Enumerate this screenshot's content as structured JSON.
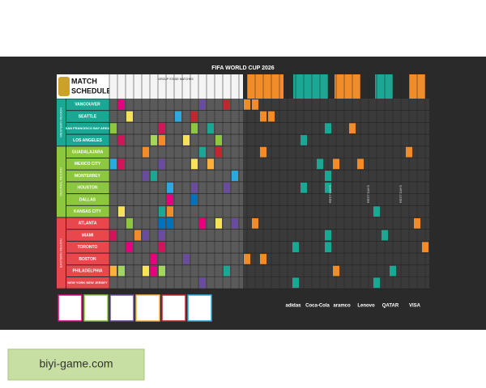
{
  "header": {
    "event": "FIFA WORLD CUP 2026",
    "title": "MATCH",
    "subtitle": "SCHEDULE",
    "group_stage": "GROUP STAGE MATCHES"
  },
  "regions": [
    {
      "label": "WESTERN REGION",
      "cities": [
        "VANCOUVER",
        "SEATTLE",
        "SAN FRANCISCO BAY AREA",
        "LOS ANGELES"
      ]
    },
    {
      "label": "CENTRAL REGION",
      "cities": [
        "GUADALAJARA",
        "MEXICO CITY",
        "MONTERREY",
        "HOUSTON",
        "DALLAS",
        "KANSAS CITY"
      ]
    },
    {
      "label": "EASTERN REGION",
      "cities": [
        "ATLANTA",
        "MIAMI",
        "TORONTO",
        "BOSTON",
        "PHILADELPHIA",
        "NEW YORK NEW JERSEY"
      ]
    }
  ],
  "rest_days": "REST DAYS",
  "sponsors": [
    "adidas",
    "Coca-Cola",
    "aramco",
    "Lenovo",
    "QATAR",
    "VISA"
  ],
  "watermark": "biyi-game.com"
}
